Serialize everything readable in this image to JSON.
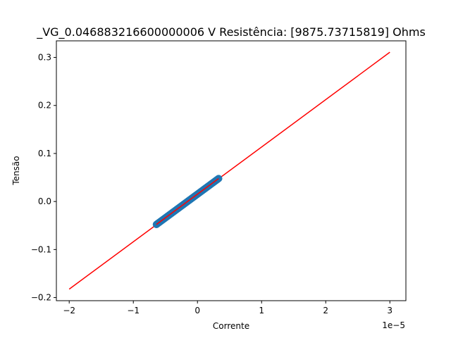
{
  "chart_data": {
    "type": "scatter",
    "title": "_VG_0.046883216600000006 V  Resistência: [9875.73715819] Ohms",
    "xlabel": "Corrente",
    "ylabel": "Tensão",
    "x_offset_text": "1e−5",
    "xlim": [
      -2.2e-05,
      3.25e-05
    ],
    "ylim": [
      -0.2065,
      0.3345
    ],
    "x_ticks": [
      {
        "value": -2e-05,
        "label": "−2"
      },
      {
        "value": -1e-05,
        "label": "−1"
      },
      {
        "value": 0,
        "label": "0"
      },
      {
        "value": 1e-05,
        "label": "1"
      },
      {
        "value": 2e-05,
        "label": "2"
      },
      {
        "value": 3e-05,
        "label": "3"
      }
    ],
    "y_ticks": [
      {
        "value": -0.2,
        "label": "−0.2"
      },
      {
        "value": -0.1,
        "label": "−0.1"
      },
      {
        "value": 0.0,
        "label": "0.0"
      },
      {
        "value": 0.1,
        "label": "0.1"
      },
      {
        "value": 0.2,
        "label": "0.2"
      },
      {
        "value": 0.3,
        "label": "0.3"
      }
    ],
    "grid": false,
    "legend": "none",
    "scatter": {
      "color": "#1f77b4",
      "x_range": [
        -6.4e-06,
        3.3e-06
      ],
      "y_range": [
        -0.0478,
        0.0478
      ]
    },
    "fit_line": {
      "color": "#ff0000",
      "points": [
        {
          "x": -2e-05,
          "y": -0.1825
        },
        {
          "x": 3e-05,
          "y": 0.3108
        }
      ],
      "overlay_points": [
        {
          "x": -6.4e-06,
          "y": -0.0478
        },
        {
          "x": 3.3e-06,
          "y": 0.0478
        }
      ]
    }
  }
}
